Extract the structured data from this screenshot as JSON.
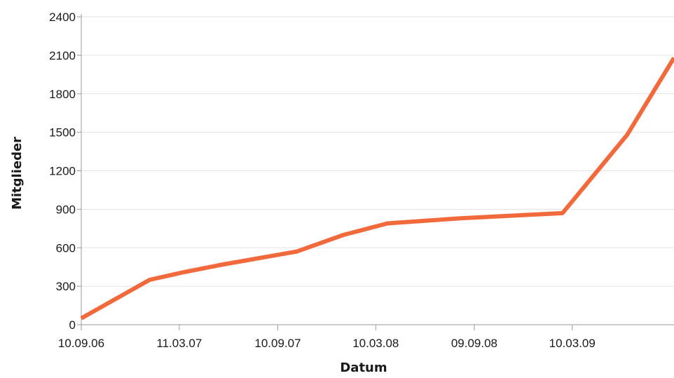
{
  "chart_data": {
    "type": "line",
    "xlabel": "Datum",
    "ylabel": "Mitglieder",
    "ylim": [
      0,
      2400
    ],
    "yticks": [
      0,
      300,
      600,
      900,
      1200,
      1500,
      1800,
      2100,
      2400
    ],
    "xlim": [
      "2006-09-10",
      "2009-09-15"
    ],
    "xticks": [
      {
        "date": "2006-09-10",
        "label": "10.09.06"
      },
      {
        "date": "2007-03-11",
        "label": "11.03.07"
      },
      {
        "date": "2007-09-10",
        "label": "10.09.07"
      },
      {
        "date": "2008-03-10",
        "label": "10.03.08"
      },
      {
        "date": "2008-09-09",
        "label": "09.09.08"
      },
      {
        "date": "2009-03-10",
        "label": "10.03.09"
      }
    ],
    "grid": true,
    "color": "#f26a3b",
    "series": [
      {
        "x": [
          "2006-09-10",
          "2007-01-15",
          "2007-03-20",
          "2007-06-01",
          "2007-10-15",
          "2008-01-10",
          "2008-04-01",
          "2008-08-15",
          "2009-02-20",
          "2009-06-20",
          "2009-09-15"
        ],
        "values": [
          50,
          350,
          410,
          470,
          570,
          700,
          790,
          830,
          870,
          1480,
          2080
        ]
      }
    ]
  }
}
